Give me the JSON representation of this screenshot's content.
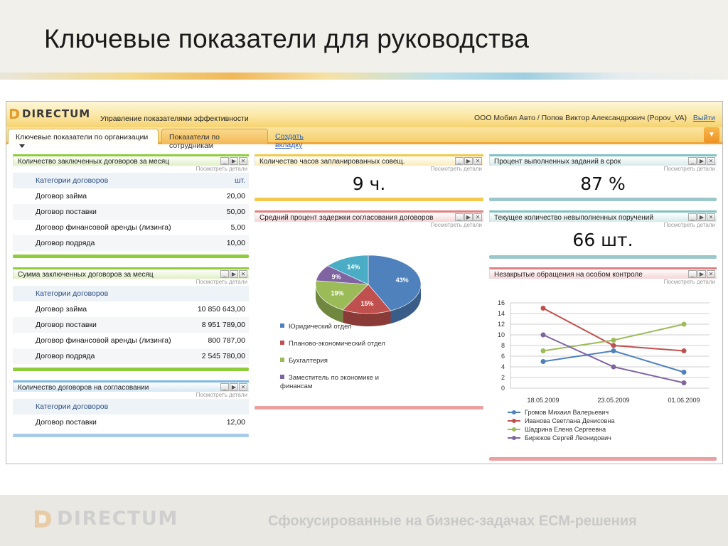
{
  "slide": {
    "title": "Ключевые показатели для руководства",
    "footer_logo": "DIRECTUM",
    "footer_tagline": "Сфокусированные на бизнес-задачах ЕСМ-решения"
  },
  "app": {
    "brand": "DIRECTUM",
    "subtitle": "Управление показателями эффективности",
    "user": "ООО Мобил Авто / Попов Виктор Александрович (Popov_VA)",
    "logout": "Выйти",
    "tabs": [
      {
        "label": "Ключевые показатели по организации"
      },
      {
        "label": "Показатели по сотрудникам"
      },
      {
        "label": "Создать вкладку"
      }
    ]
  },
  "common": {
    "details": "Посмотреть детали"
  },
  "widgets": {
    "contracts_count": {
      "title": "Количество заключенных договоров за месяц",
      "header": {
        "category": "Категории договоров",
        "unit": "шт."
      },
      "rows": [
        {
          "name": "Договор займа",
          "value": "20,00"
        },
        {
          "name": "Договор поставки",
          "value": "50,00"
        },
        {
          "name": "Договор финансовой аренды (лизинга)",
          "value": "5,00"
        },
        {
          "name": "Договор подряда",
          "value": "10,00"
        }
      ]
    },
    "contracts_sum": {
      "title": "Сумма заключенных договоров за месяц",
      "header": {
        "category": "Категории договоров"
      },
      "rows": [
        {
          "name": "Договор займа",
          "value": "10 850 643,00"
        },
        {
          "name": "Договор поставки",
          "value": "8 951 789,00"
        },
        {
          "name": "Договор финансовой аренды (лизинга)",
          "value": "800 787,00"
        },
        {
          "name": "Договор подряда",
          "value": "2 545 780,00"
        }
      ]
    },
    "contracts_approval": {
      "title": "Количество договоров на согласовании",
      "header": {
        "category": "Категории договоров"
      },
      "rows": [
        {
          "name": "Договор поставки",
          "value": "12,00"
        }
      ]
    },
    "meeting_hours": {
      "title": "Количество часов запланированных совещ.",
      "value": "9 ч."
    },
    "tasks_on_time": {
      "title": "Процент выполненных заданий в срок",
      "value": "87 %"
    },
    "open_orders": {
      "title": "Текущее количество невыполненных поручений",
      "value": "66 шт."
    },
    "approval_delay": {
      "title": "Средний процент задержки согласования договоров"
    },
    "special_control": {
      "title": "Незакрытые обращения на особом контроле"
    }
  },
  "chart_data": [
    {
      "type": "pie",
      "slices": [
        {
          "label": "Юридический отдел",
          "value": 43,
          "color": "#4f81bd"
        },
        {
          "label": "Планово-экономический отдел",
          "value": 15,
          "color": "#c0504d"
        },
        {
          "label": "Бухгалтерия",
          "value": 19,
          "color": "#9bbb59"
        },
        {
          "label": "Заместитель по экономике и финансам",
          "value": 9,
          "color": "#8064a2"
        },
        {
          "label": "",
          "value": 14,
          "color": "#4bacc6"
        }
      ],
      "data_labels": [
        "43%",
        "15%",
        "19%",
        "9%",
        "14%"
      ],
      "legend_position": "bottom"
    },
    {
      "type": "line",
      "categories": [
        "18.05.2009",
        "23.05.2009",
        "01.06.2009"
      ],
      "series": [
        {
          "name": "Громов Михаил Валерьевич",
          "values": [
            5,
            7,
            3
          ],
          "color": "#4f81bd"
        },
        {
          "name": "Иванова Светлана Денисовна",
          "values": [
            15,
            8,
            7
          ],
          "color": "#c0504d"
        },
        {
          "name": "Шадрина Елена Сергеевна",
          "values": [
            7,
            9,
            12
          ],
          "color": "#9bbb59"
        },
        {
          "name": "Бирюков Сергей Леонидович",
          "values": [
            10,
            4,
            1
          ],
          "color": "#8064a2"
        }
      ],
      "ylim": [
        0,
        16
      ],
      "yticks": [
        "0",
        "2",
        "4",
        "6",
        "8",
        "10",
        "12",
        "14",
        "16"
      ],
      "grid": true,
      "legend_position": "bottom"
    }
  ]
}
